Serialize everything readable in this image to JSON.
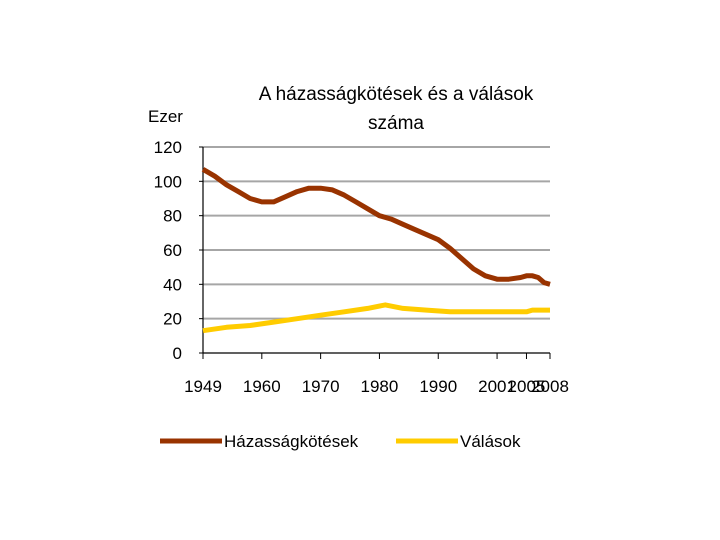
{
  "chart_data": {
    "type": "line",
    "title_line1": "A házasságkötések és a válások",
    "title_line2": "száma",
    "y_unit_label": "Ezer",
    "ylim": [
      0,
      120
    ],
    "y_ticks": [
      0,
      20,
      40,
      60,
      80,
      100,
      120
    ],
    "grid": true,
    "legend_position": "bottom",
    "x_tick_labels": [
      "1949",
      "1960",
      "1970",
      "1980",
      "1990",
      "2001",
      "2005",
      "2008"
    ],
    "x_tick_years": [
      1949,
      1959,
      1969,
      1979,
      1989,
      1999,
      2004,
      2008
    ],
    "series": [
      {
        "name": "Házasságkötések",
        "color": "#993300",
        "x": [
          1949,
          1951,
          1953,
          1955,
          1957,
          1959,
          1961,
          1963,
          1965,
          1967,
          1969,
          1971,
          1973,
          1975,
          1977,
          1979,
          1981,
          1983,
          1985,
          1987,
          1989,
          1991,
          1993,
          1995,
          1997,
          1999,
          2001,
          2003,
          2004,
          2005,
          2006,
          2007,
          2008
        ],
        "values": [
          107,
          103,
          98,
          94,
          90,
          88,
          88,
          91,
          94,
          96,
          96,
          95,
          92,
          88,
          84,
          80,
          78,
          75,
          72,
          69,
          66,
          61,
          55,
          49,
          45,
          43,
          43,
          44,
          45,
          45,
          44,
          41,
          40
        ]
      },
      {
        "name": "Válások",
        "color": "#ffcc00",
        "x": [
          1949,
          1953,
          1957,
          1961,
          1965,
          1969,
          1973,
          1977,
          1980,
          1983,
          1987,
          1991,
          1995,
          1999,
          2001,
          2004,
          2005,
          2008
        ],
        "values": [
          13,
          15,
          16,
          18,
          20,
          22,
          24,
          26,
          28,
          26,
          25,
          24,
          24,
          24,
          24,
          24,
          25,
          25
        ]
      }
    ]
  }
}
